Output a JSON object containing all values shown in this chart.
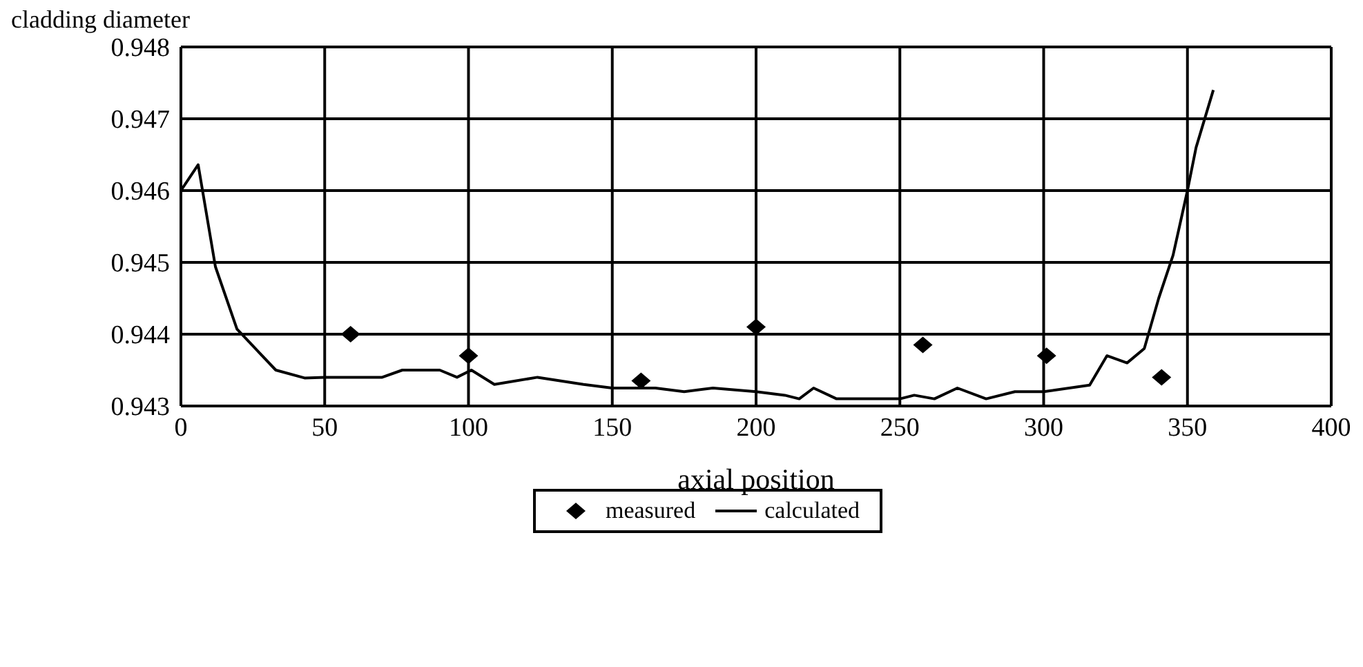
{
  "chart_data": {
    "type": "line",
    "xlabel": "axial position",
    "ylabel": "cladding diameter",
    "xlim": [
      0,
      400
    ],
    "xticks": [
      0,
      50,
      100,
      150,
      200,
      250,
      300,
      350,
      400
    ],
    "ylim": [
      0.943,
      0.948
    ],
    "yticks": [
      0.943,
      0.944,
      0.945,
      0.946,
      0.947,
      0.948
    ],
    "grid": true,
    "legend": "bottom",
    "series": [
      {
        "name": "measured",
        "type": "scatter",
        "marker": "diamond",
        "color": "#000000",
        "x": [
          59,
          100,
          160,
          200,
          258,
          301,
          341
        ],
        "values": [
          0.944,
          0.9437,
          0.94335,
          0.9441,
          0.94385,
          0.9437,
          0.9434
        ]
      },
      {
        "name": "calculated",
        "marker": "none",
        "line_style": "solid",
        "color": "#000000",
        "x": [
          0,
          6,
          12,
          19.5,
          24,
          33,
          43,
          50,
          58,
          70,
          77,
          90,
          96,
          101,
          109,
          124,
          140,
          150,
          165,
          175,
          185,
          200,
          210,
          215,
          220,
          228,
          240,
          250,
          255,
          262,
          270,
          280,
          290,
          300,
          316,
          322,
          329,
          335,
          340,
          345,
          350,
          353,
          359
        ],
        "values": [
          0.946,
          0.94636,
          0.94494,
          0.94407,
          0.94388,
          0.9435,
          0.94339,
          0.9434,
          0.9434,
          0.9434,
          0.9435,
          0.9435,
          0.9434,
          0.9435,
          0.9433,
          0.9434,
          0.9433,
          0.94325,
          0.94325,
          0.9432,
          0.94325,
          0.9432,
          0.94315,
          0.9431,
          0.94325,
          0.9431,
          0.9431,
          0.9431,
          0.94315,
          0.9431,
          0.94325,
          0.9431,
          0.9432,
          0.9432,
          0.94329,
          0.9437,
          0.9436,
          0.9438,
          0.9445,
          0.9451,
          0.946,
          0.9466,
          0.9474
        ]
      }
    ]
  }
}
